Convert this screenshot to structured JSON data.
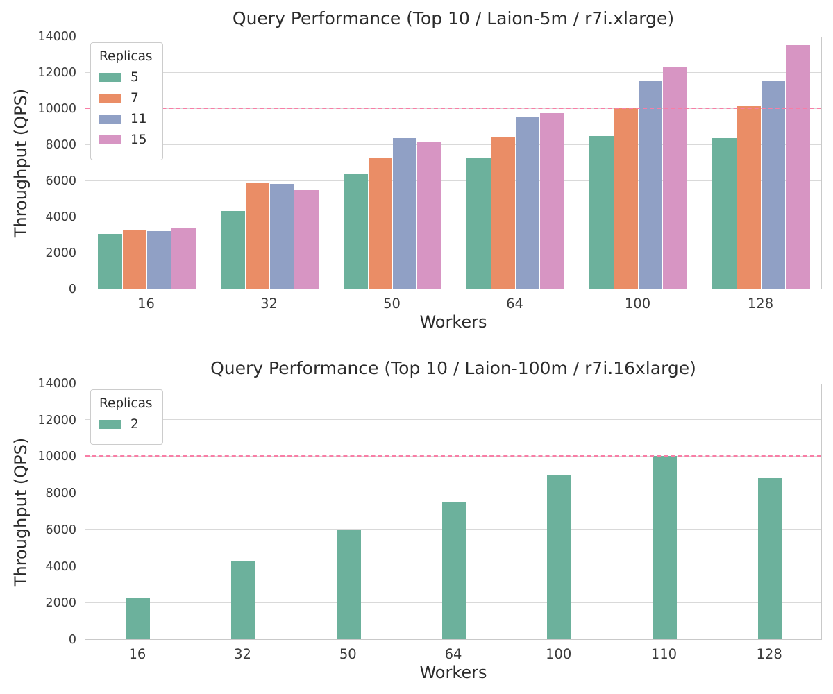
{
  "figure": {
    "background": "#ffffff",
    "grid_color": "#d9d9d9",
    "spine_color": "#c9c9c9",
    "text_color": "#262626"
  },
  "chart_data": [
    {
      "type": "bar",
      "title": "Query Performance (Top 10 / Laion-5m / r7i.xlarge)",
      "xlabel": "Workers",
      "ylabel": "Throughput (QPS)",
      "categories": [
        "16",
        "32",
        "50",
        "64",
        "100",
        "128"
      ],
      "series": [
        {
          "name": "5",
          "color": "#6cb19c",
          "values": [
            3050,
            4300,
            6400,
            7250,
            8450,
            8350
          ]
        },
        {
          "name": "7",
          "color": "#ea8d66",
          "values": [
            3250,
            5900,
            7250,
            8400,
            10000,
            10100
          ]
        },
        {
          "name": "11",
          "color": "#90a0c5",
          "values": [
            3200,
            5800,
            8350,
            9550,
            11500,
            11500
          ]
        },
        {
          "name": "15",
          "color": "#d795c3",
          "values": [
            3350,
            5450,
            8100,
            9750,
            12300,
            13500
          ]
        }
      ],
      "legend_title": "Replicas",
      "legend_position": "upper left",
      "ylim": [
        0,
        14000
      ],
      "yticks": [
        0,
        2000,
        4000,
        6000,
        8000,
        10000,
        12000,
        14000
      ],
      "grid": true,
      "ref_line": {
        "y": 10000,
        "color": "#f87ea6",
        "style": "dashed"
      }
    },
    {
      "type": "bar",
      "title": "Query Performance (Top 10 / Laion-100m / r7i.16xlarge)",
      "xlabel": "Workers",
      "ylabel": "Throughput (QPS)",
      "categories": [
        "16",
        "32",
        "50",
        "64",
        "100",
        "110",
        "128"
      ],
      "series": [
        {
          "name": "2",
          "color": "#6cb19c",
          "values": [
            2250,
            4300,
            5950,
            7500,
            9000,
            10000,
            8800
          ]
        }
      ],
      "legend_title": "Replicas",
      "legend_position": "upper left",
      "ylim": [
        0,
        14000
      ],
      "yticks": [
        0,
        2000,
        4000,
        6000,
        8000,
        10000,
        12000,
        14000
      ],
      "grid": true,
      "ref_line": {
        "y": 10000,
        "color": "#f87ea6",
        "style": "dashed"
      }
    }
  ]
}
